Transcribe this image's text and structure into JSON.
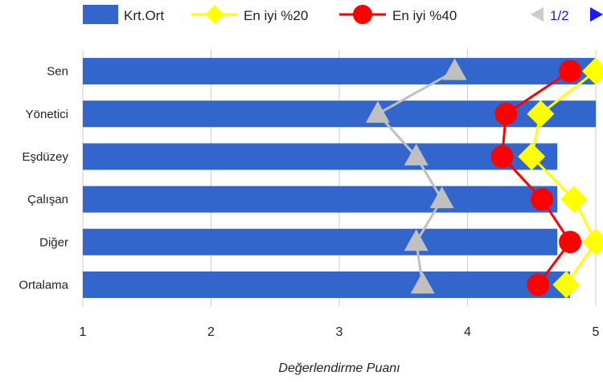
{
  "chart_data": {
    "type": "bar",
    "orientation": "horizontal",
    "categories": [
      "Sen",
      "Yönetici",
      "Eşdüzey",
      "Çalışan",
      "Diğer",
      "Ortalama"
    ],
    "bar_series": {
      "name": "Krt.Ort",
      "color": "#3366cc",
      "values": [
        5.0,
        5.0,
        4.7,
        4.7,
        4.7,
        4.8
      ]
    },
    "line_series": [
      {
        "name": "",
        "color": "#c0c0c0",
        "marker": "triangle",
        "values": [
          3.9,
          3.3,
          3.6,
          3.8,
          3.6,
          3.65
        ]
      },
      {
        "name": "En iyi %20",
        "color": "#ffff00",
        "marker": "diamond",
        "values": [
          5.0,
          4.57,
          4.5,
          4.83,
          5.0,
          4.77
        ]
      },
      {
        "name": "En iyi %40",
        "color": "#ff0000",
        "marker": "circle",
        "values": [
          4.8,
          4.3,
          4.27,
          4.58,
          4.8,
          4.55
        ]
      }
    ],
    "xlim": [
      1,
      5
    ],
    "xticks": [
      "1",
      "2",
      "3",
      "4",
      "5"
    ],
    "xlabel": "Değerlendirme Puanı",
    "ylabel": "",
    "title": "",
    "grid": true,
    "legend": {
      "placement": "top",
      "items": [
        "Krt.Ort",
        "En iyi %20",
        "En iyi %40"
      ],
      "page": "1/2"
    }
  }
}
